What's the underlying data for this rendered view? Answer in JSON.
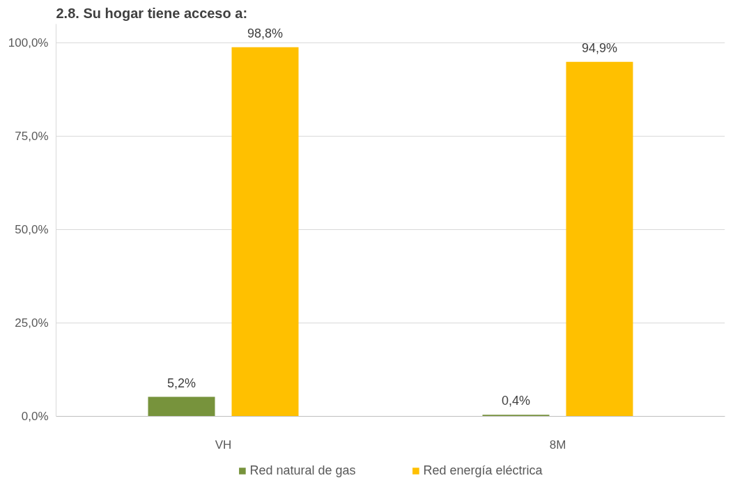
{
  "chart_data": {
    "type": "bar",
    "title": "2.8. Su hogar tiene acceso a:",
    "categories": [
      "VH",
      "8M"
    ],
    "series": [
      {
        "name": "Red natural de gas",
        "color": "#77933c",
        "values": [
          5.2,
          0.4
        ],
        "value_labels": [
          "5,2%",
          "0,4%"
        ]
      },
      {
        "name": "Red energía eléctrica",
        "color": "#ffc000",
        "values": [
          98.8,
          94.9
        ],
        "value_labels": [
          "98,8%",
          "94,9%"
        ]
      }
    ],
    "ylim": [
      0,
      105
    ],
    "yticks": [
      {
        "value": 0,
        "label": "0,0%"
      },
      {
        "value": 25,
        "label": "25,0%"
      },
      {
        "value": 50,
        "label": "50,0%"
      },
      {
        "value": 75,
        "label": "75,0%"
      },
      {
        "value": 100,
        "label": "100,0%"
      }
    ],
    "grid": "y",
    "legend": "bottom"
  }
}
